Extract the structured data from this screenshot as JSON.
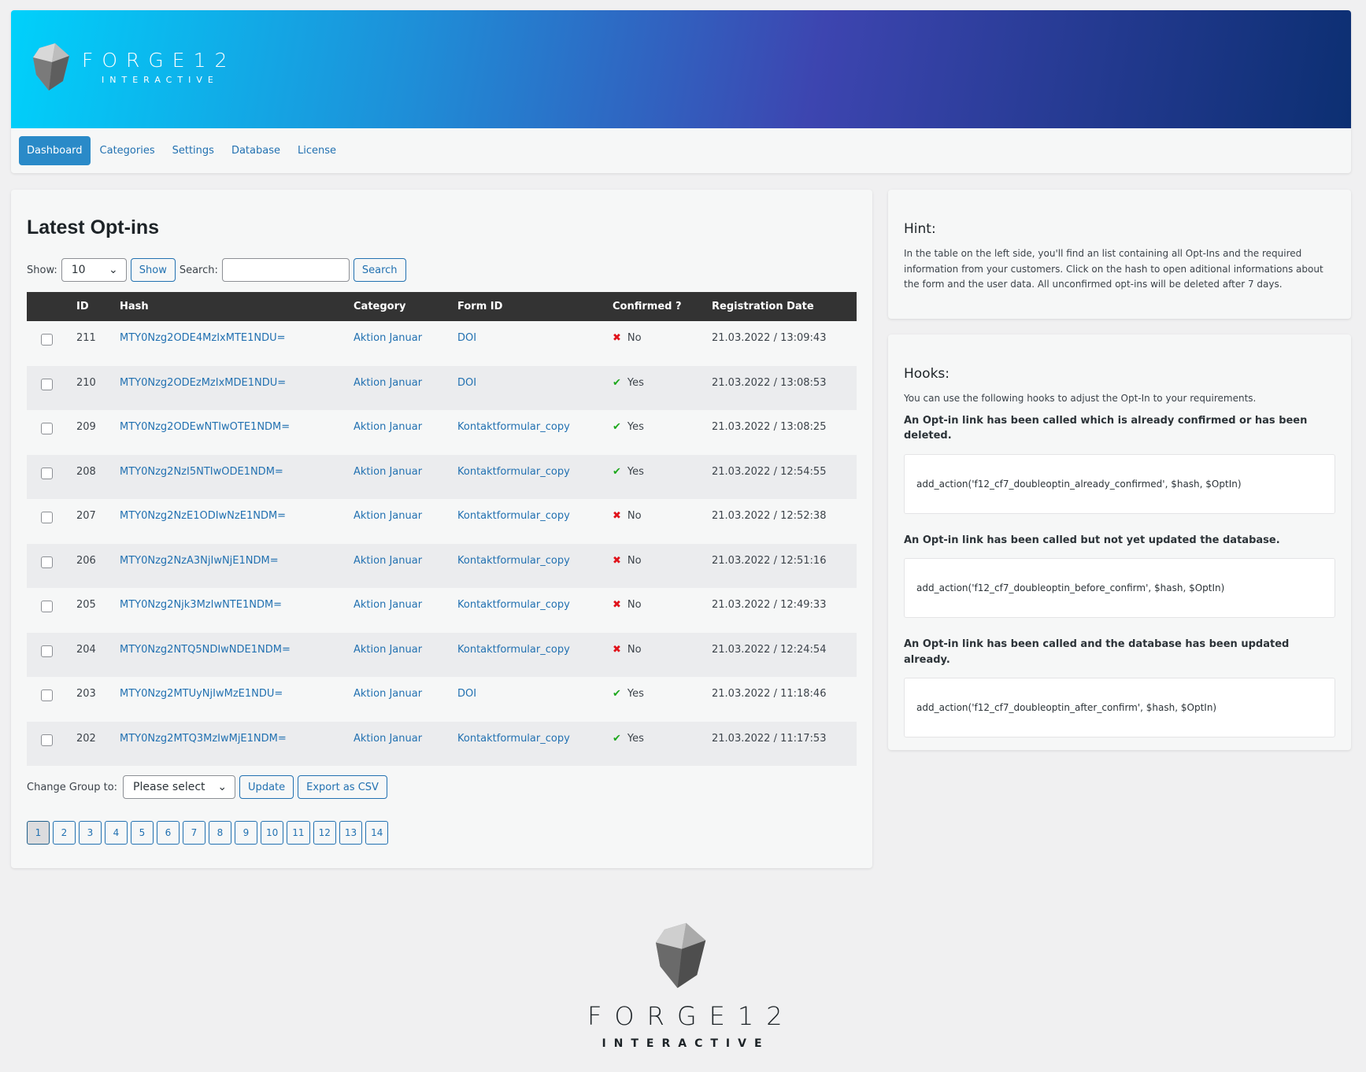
{
  "brand": {
    "name": "FORGE12",
    "sub": "INTERACTIVE"
  },
  "nav": [
    {
      "label": "Dashboard",
      "active": true
    },
    {
      "label": "Categories"
    },
    {
      "label": "Settings"
    },
    {
      "label": "Database"
    },
    {
      "label": "License"
    }
  ],
  "main": {
    "title": "Latest Opt-ins",
    "show_label": "Show:",
    "show_value": "10",
    "show_button": "Show",
    "search_label": "Search:",
    "search_value": "",
    "search_button": "Search",
    "columns": [
      "",
      "ID",
      "Hash",
      "Category",
      "Form ID",
      "Confirmed ?",
      "Registration Date"
    ],
    "rows": [
      {
        "id": "211",
        "hash": "MTY0Nzg2ODE4MzIxMTE1NDU=",
        "category": "Aktion Januar",
        "form": "DOI",
        "confirmed": "No",
        "date": "21.03.2022 / 13:09:43"
      },
      {
        "id": "210",
        "hash": "MTY0Nzg2ODEzMzIxMDE1NDU=",
        "category": "Aktion Januar",
        "form": "DOI",
        "confirmed": "Yes",
        "date": "21.03.2022 / 13:08:53"
      },
      {
        "id": "209",
        "hash": "MTY0Nzg2ODEwNTIwOTE1NDM=",
        "category": "Aktion Januar",
        "form": "Kontaktformular_copy",
        "confirmed": "Yes",
        "date": "21.03.2022 / 13:08:25"
      },
      {
        "id": "208",
        "hash": "MTY0Nzg2NzI5NTIwODE1NDM=",
        "category": "Aktion Januar",
        "form": "Kontaktformular_copy",
        "confirmed": "Yes",
        "date": "21.03.2022 / 12:54:55"
      },
      {
        "id": "207",
        "hash": "MTY0Nzg2NzE1ODIwNzE1NDM=",
        "category": "Aktion Januar",
        "form": "Kontaktformular_copy",
        "confirmed": "No",
        "date": "21.03.2022 / 12:52:38"
      },
      {
        "id": "206",
        "hash": "MTY0Nzg2NzA3NjIwNjE1NDM=",
        "category": "Aktion Januar",
        "form": "Kontaktformular_copy",
        "confirmed": "No",
        "date": "21.03.2022 / 12:51:16"
      },
      {
        "id": "205",
        "hash": "MTY0Nzg2Njk3MzIwNTE1NDM=",
        "category": "Aktion Januar",
        "form": "Kontaktformular_copy",
        "confirmed": "No",
        "date": "21.03.2022 / 12:49:33"
      },
      {
        "id": "204",
        "hash": "MTY0Nzg2NTQ5NDIwNDE1NDM=",
        "category": "Aktion Januar",
        "form": "Kontaktformular_copy",
        "confirmed": "No",
        "date": "21.03.2022 / 12:24:54"
      },
      {
        "id": "203",
        "hash": "MTY0Nzg2MTUyNjIwMzE1NDU=",
        "category": "Aktion Januar",
        "form": "DOI",
        "confirmed": "Yes",
        "date": "21.03.2022 / 11:18:46"
      },
      {
        "id": "202",
        "hash": "MTY0Nzg2MTQ3MzIwMjE1NDM=",
        "category": "Aktion Januar",
        "form": "Kontaktformular_copy",
        "confirmed": "Yes",
        "date": "21.03.2022 / 11:17:53"
      }
    ],
    "change_group_label": "Change Group to:",
    "group_select": "Please select",
    "update_button": "Update",
    "export_button": "Export as CSV",
    "pages": [
      "1",
      "2",
      "3",
      "4",
      "5",
      "6",
      "7",
      "8",
      "9",
      "10",
      "11",
      "12",
      "13",
      "14"
    ],
    "current_page": "1"
  },
  "hint": {
    "title": "Hint:",
    "text": "In the table on the left side, you'll find an list containing all Opt-Ins and the required information from your customers. Click on the hash to open aditional informations about the form and the user data. All unconfirmed opt-ins will be deleted after 7 days."
  },
  "hooks": {
    "title": "Hooks:",
    "intro": "You can use the following hooks to adjust the Opt-In to your requirements.",
    "items": [
      {
        "desc": "An Opt-in link has been called which is already confirmed or has been deleted.",
        "code": "add_action('f12_cf7_doubleoptin_already_confirmed', $hash, $OptIn)"
      },
      {
        "desc": "An Opt-in link has been called but not yet updated the database.",
        "code": "add_action('f12_cf7_doubleoptin_before_confirm', $hash, $OptIn)"
      },
      {
        "desc": "An Opt-in link has been called and the database has been updated already.",
        "code": "add_action('f12_cf7_doubleoptin_after_confirm', $hash, $OptIn)"
      }
    ]
  },
  "colors": {
    "accent": "#2271b1",
    "nav_active": "#2a8ac8",
    "table_header": "#333333",
    "no": "#e0131b",
    "yes": "#1da81d"
  }
}
